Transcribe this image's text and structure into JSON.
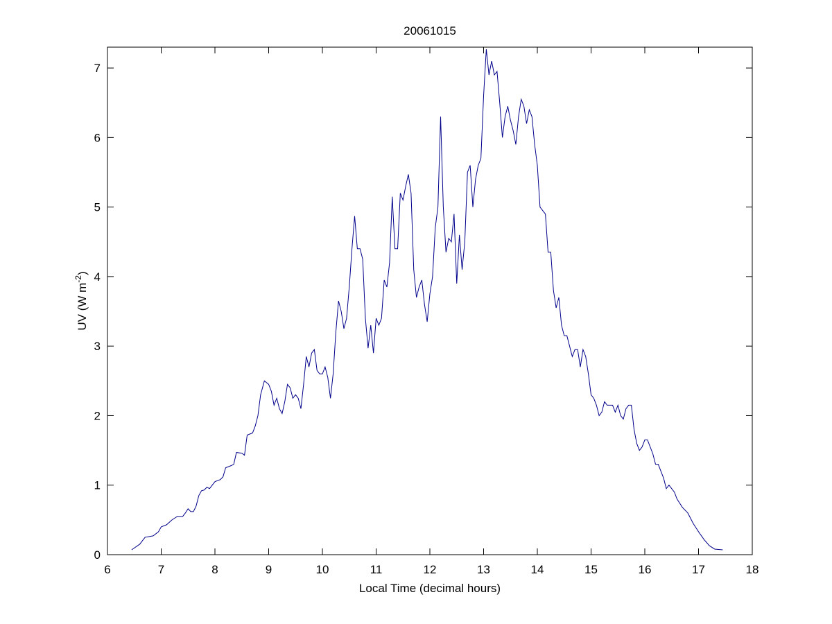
{
  "chart_data": {
    "type": "line",
    "title": "20061015",
    "x_label": "Local Time (decimal hours)",
    "y_label": [
      "UV (W m",
      "-2",
      ")"
    ],
    "xlim": [
      6,
      18
    ],
    "xticks": [
      6,
      7,
      8,
      9,
      10,
      11,
      12,
      13,
      14,
      15,
      16,
      17,
      18
    ],
    "ylim": [
      0,
      7.3
    ],
    "yticks": [
      0,
      1,
      2,
      3,
      4,
      5,
      6,
      7
    ],
    "series": [
      {
        "color": "#00008b",
        "x": [
          6.45,
          6.6,
          6.7,
          6.85,
          6.95,
          7.0,
          7.1,
          7.2,
          7.3,
          7.4,
          7.45,
          7.5,
          7.55,
          7.6,
          7.65,
          7.7,
          7.75,
          7.8,
          7.85,
          7.9,
          8.0,
          8.1,
          8.15,
          8.2,
          8.3,
          8.35,
          8.4,
          8.5,
          8.55,
          8.6,
          8.7,
          8.75,
          8.8,
          8.85,
          8.92,
          9.0,
          9.05,
          9.1,
          9.15,
          9.2,
          9.25,
          9.3,
          9.35,
          9.4,
          9.45,
          9.5,
          9.55,
          9.6,
          9.65,
          9.7,
          9.75,
          9.8,
          9.85,
          9.9,
          9.95,
          10.0,
          10.05,
          10.1,
          10.15,
          10.2,
          10.25,
          10.3,
          10.35,
          10.4,
          10.45,
          10.5,
          10.55,
          10.6,
          10.65,
          10.7,
          10.75,
          10.8,
          10.85,
          10.9,
          10.95,
          11.0,
          11.05,
          11.1,
          11.15,
          11.2,
          11.25,
          11.3,
          11.35,
          11.4,
          11.45,
          11.5,
          11.55,
          11.6,
          11.65,
          11.7,
          11.75,
          11.8,
          11.85,
          11.9,
          11.95,
          12.0,
          12.05,
          12.1,
          12.15,
          12.2,
          12.25,
          12.3,
          12.35,
          12.4,
          12.45,
          12.5,
          12.55,
          12.6,
          12.65,
          12.7,
          12.75,
          12.8,
          12.85,
          12.9,
          12.95,
          13.0,
          13.05,
          13.1,
          13.15,
          13.2,
          13.25,
          13.3,
          13.35,
          13.4,
          13.45,
          13.5,
          13.55,
          13.6,
          13.65,
          13.7,
          13.75,
          13.8,
          13.85,
          13.9,
          13.95,
          14.0,
          14.05,
          14.1,
          14.15,
          14.2,
          14.25,
          14.3,
          14.35,
          14.4,
          14.45,
          14.5,
          14.55,
          14.6,
          14.65,
          14.7,
          14.75,
          14.8,
          14.85,
          14.9,
          14.95,
          15.0,
          15.05,
          15.1,
          15.15,
          15.2,
          15.25,
          15.3,
          15.4,
          15.45,
          15.5,
          15.55,
          15.6,
          15.65,
          15.7,
          15.75,
          15.8,
          15.85,
          15.9,
          15.95,
          16.0,
          16.05,
          16.1,
          16.15,
          16.2,
          16.25,
          16.3,
          16.35,
          16.4,
          16.45,
          16.5,
          16.55,
          16.6,
          16.7,
          16.8,
          16.9,
          17.0,
          17.1,
          17.2,
          17.3,
          17.45
        ],
        "values": [
          0.07,
          0.15,
          0.25,
          0.27,
          0.33,
          0.4,
          0.43,
          0.5,
          0.55,
          0.55,
          0.6,
          0.66,
          0.62,
          0.62,
          0.7,
          0.85,
          0.92,
          0.93,
          0.97,
          0.95,
          1.05,
          1.08,
          1.12,
          1.25,
          1.28,
          1.3,
          1.47,
          1.46,
          1.43,
          1.72,
          1.75,
          1.85,
          2.0,
          2.3,
          2.5,
          2.45,
          2.35,
          2.15,
          2.25,
          2.1,
          2.03,
          2.2,
          2.45,
          2.4,
          2.25,
          2.3,
          2.25,
          2.1,
          2.45,
          2.85,
          2.7,
          2.9,
          2.95,
          2.65,
          2.6,
          2.6,
          2.7,
          2.55,
          2.25,
          2.6,
          3.2,
          3.65,
          3.5,
          3.25,
          3.4,
          3.85,
          4.4,
          4.87,
          4.4,
          4.4,
          4.25,
          3.4,
          2.97,
          3.3,
          2.9,
          3.4,
          3.3,
          3.4,
          3.95,
          3.85,
          4.2,
          5.15,
          4.4,
          4.4,
          5.2,
          5.1,
          5.3,
          5.47,
          5.2,
          4.1,
          3.7,
          3.85,
          3.95,
          3.6,
          3.35,
          3.75,
          4.0,
          4.7,
          5.0,
          6.3,
          5.0,
          4.35,
          4.55,
          4.5,
          4.9,
          3.9,
          4.6,
          4.1,
          4.5,
          5.5,
          5.6,
          5.0,
          5.4,
          5.6,
          5.7,
          6.6,
          7.27,
          6.9,
          7.1,
          6.9,
          6.95,
          6.5,
          6.0,
          6.3,
          6.45,
          6.25,
          6.1,
          5.9,
          6.3,
          6.55,
          6.45,
          6.2,
          6.4,
          6.3,
          5.9,
          5.6,
          5.0,
          4.95,
          4.9,
          4.35,
          4.35,
          3.8,
          3.55,
          3.7,
          3.3,
          3.15,
          3.15,
          3.0,
          2.85,
          2.95,
          2.95,
          2.7,
          2.95,
          2.85,
          2.6,
          2.3,
          2.25,
          2.15,
          2.0,
          2.05,
          2.2,
          2.15,
          2.15,
          2.05,
          2.15,
          2.0,
          1.95,
          2.1,
          2.15,
          2.15,
          1.8,
          1.6,
          1.5,
          1.55,
          1.65,
          1.65,
          1.55,
          1.45,
          1.3,
          1.3,
          1.2,
          1.1,
          0.95,
          1.0,
          0.95,
          0.9,
          0.8,
          0.68,
          0.6,
          0.45,
          0.33,
          0.22,
          0.13,
          0.08,
          0.07
        ]
      }
    ]
  }
}
